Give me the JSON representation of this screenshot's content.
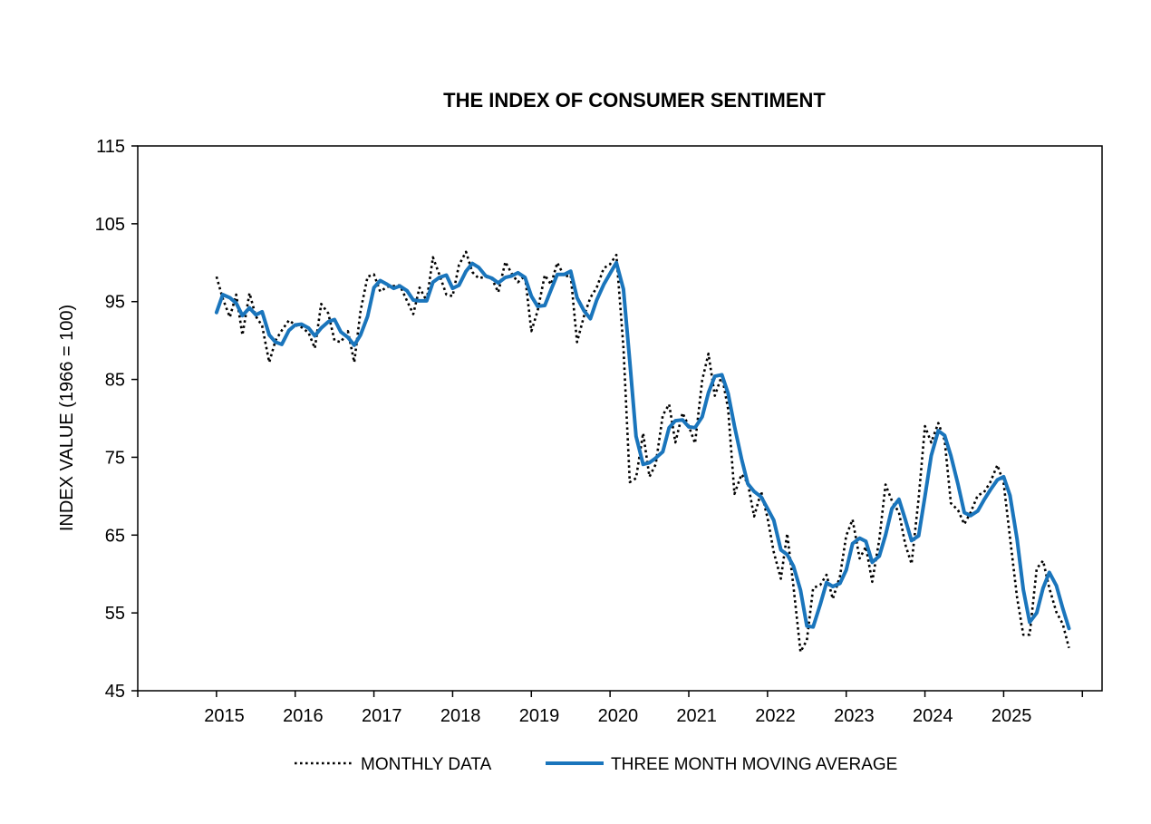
{
  "chart_data": {
    "type": "line",
    "title": "THE INDEX OF CONSUMER SENTIMENT",
    "xlabel": "",
    "ylabel": "INDEX VALUE (1966 = 100)",
    "ylim": [
      45,
      115
    ],
    "yticks": [
      "45",
      "55",
      "65",
      "75",
      "85",
      "95",
      "105",
      "115"
    ],
    "xlim": [
      2014.0,
      2026.25
    ],
    "xticks": [
      "2015",
      "2016",
      "2017",
      "2018",
      "2019",
      "2020",
      "2021",
      "2022",
      "2023",
      "2024",
      "2025"
    ],
    "legend_position": "bottom-center",
    "colors": {
      "monthly": "#000000",
      "average": "#1a75bc"
    },
    "series": [
      {
        "name": "MONTHLY DATA",
        "style": "dotted",
        "anchors": [
          [
            2015.0,
            98.2
          ],
          [
            2015.08,
            95.4
          ],
          [
            2015.17,
            93.0
          ],
          [
            2015.25,
            95.9
          ],
          [
            2015.33,
            90.7
          ],
          [
            2015.42,
            96.1
          ],
          [
            2015.5,
            93.1
          ],
          [
            2015.58,
            91.9
          ],
          [
            2015.67,
            87.2
          ],
          [
            2015.75,
            90.0
          ],
          [
            2015.83,
            91.3
          ],
          [
            2015.92,
            92.6
          ],
          [
            2016.0,
            92.0
          ],
          [
            2016.08,
            91.7
          ],
          [
            2016.17,
            91.0
          ],
          [
            2016.25,
            89.0
          ],
          [
            2016.33,
            94.7
          ],
          [
            2016.42,
            93.5
          ],
          [
            2016.5,
            90.0
          ],
          [
            2016.58,
            89.8
          ],
          [
            2016.67,
            91.2
          ],
          [
            2016.75,
            87.2
          ],
          [
            2016.83,
            93.8
          ],
          [
            2016.92,
            98.2
          ],
          [
            2017.0,
            98.5
          ],
          [
            2017.08,
            96.3
          ],
          [
            2017.17,
            96.9
          ],
          [
            2017.25,
            97.0
          ],
          [
            2017.33,
            97.1
          ],
          [
            2017.42,
            95.1
          ],
          [
            2017.5,
            93.4
          ],
          [
            2017.58,
            96.8
          ],
          [
            2017.67,
            95.1
          ],
          [
            2017.75,
            100.7
          ],
          [
            2017.83,
            98.5
          ],
          [
            2017.92,
            95.9
          ],
          [
            2018.0,
            95.7
          ],
          [
            2018.08,
            99.7
          ],
          [
            2018.17,
            101.4
          ],
          [
            2018.25,
            98.8
          ],
          [
            2018.33,
            98.0
          ],
          [
            2018.42,
            98.2
          ],
          [
            2018.5,
            97.9
          ],
          [
            2018.58,
            96.2
          ],
          [
            2018.67,
            100.1
          ],
          [
            2018.75,
            98.6
          ],
          [
            2018.83,
            97.5
          ],
          [
            2018.92,
            98.3
          ],
          [
            2019.0,
            91.2
          ],
          [
            2019.08,
            93.8
          ],
          [
            2019.17,
            98.4
          ],
          [
            2019.25,
            97.2
          ],
          [
            2019.33,
            100.0
          ],
          [
            2019.42,
            98.2
          ],
          [
            2019.5,
            98.4
          ],
          [
            2019.58,
            89.8
          ],
          [
            2019.67,
            93.2
          ],
          [
            2019.75,
            95.5
          ],
          [
            2019.83,
            96.8
          ],
          [
            2019.92,
            99.3
          ],
          [
            2020.0,
            99.8
          ],
          [
            2020.08,
            101.0
          ],
          [
            2020.17,
            89.1
          ],
          [
            2020.25,
            71.8
          ],
          [
            2020.33,
            72.3
          ],
          [
            2020.42,
            78.1
          ],
          [
            2020.5,
            72.5
          ],
          [
            2020.58,
            74.1
          ],
          [
            2020.67,
            80.4
          ],
          [
            2020.75,
            81.8
          ],
          [
            2020.83,
            76.9
          ],
          [
            2020.92,
            80.7
          ],
          [
            2021.0,
            79.0
          ],
          [
            2021.08,
            76.8
          ],
          [
            2021.17,
            84.9
          ],
          [
            2021.25,
            88.3
          ],
          [
            2021.33,
            82.9
          ],
          [
            2021.42,
            85.5
          ],
          [
            2021.5,
            81.2
          ],
          [
            2021.58,
            70.3
          ],
          [
            2021.67,
            72.8
          ],
          [
            2021.75,
            71.7
          ],
          [
            2021.83,
            67.4
          ],
          [
            2021.92,
            70.6
          ],
          [
            2022.0,
            67.2
          ],
          [
            2022.08,
            62.8
          ],
          [
            2022.17,
            59.4
          ],
          [
            2022.25,
            65.2
          ],
          [
            2022.33,
            58.4
          ],
          [
            2022.42,
            50.0
          ],
          [
            2022.5,
            51.5
          ],
          [
            2022.58,
            58.2
          ],
          [
            2022.67,
            58.6
          ],
          [
            2022.75,
            59.9
          ],
          [
            2022.83,
            56.8
          ],
          [
            2022.92,
            59.7
          ],
          [
            2023.0,
            64.9
          ],
          [
            2023.08,
            67.0
          ],
          [
            2023.17,
            62.0
          ],
          [
            2023.25,
            63.5
          ],
          [
            2023.33,
            59.0
          ],
          [
            2023.42,
            64.4
          ],
          [
            2023.5,
            71.5
          ],
          [
            2023.58,
            69.4
          ],
          [
            2023.67,
            67.9
          ],
          [
            2023.75,
            63.8
          ],
          [
            2023.83,
            61.3
          ],
          [
            2023.92,
            69.7
          ],
          [
            2024.0,
            79.0
          ],
          [
            2024.08,
            76.9
          ],
          [
            2024.17,
            79.4
          ],
          [
            2024.25,
            77.2
          ],
          [
            2024.33,
            69.1
          ],
          [
            2024.42,
            68.2
          ],
          [
            2024.5,
            66.4
          ],
          [
            2024.58,
            67.9
          ],
          [
            2024.67,
            70.1
          ],
          [
            2024.75,
            70.5
          ],
          [
            2024.83,
            71.8
          ],
          [
            2024.92,
            74.0
          ],
          [
            2025.0,
            71.7
          ],
          [
            2025.08,
            64.7
          ],
          [
            2025.17,
            57.0
          ],
          [
            2025.25,
            52.2
          ],
          [
            2025.33,
            52.2
          ],
          [
            2025.42,
            60.7
          ],
          [
            2025.5,
            61.7
          ],
          [
            2025.58,
            58.2
          ],
          [
            2025.67,
            55.1
          ],
          [
            2025.75,
            53.6
          ],
          [
            2025.83,
            50.5
          ]
        ]
      },
      {
        "name": "THREE MONTH MOVING AVERAGE",
        "style": "solid",
        "anchors": [
          [
            2015.0,
            93.6
          ],
          [
            2015.08,
            95.9
          ],
          [
            2015.17,
            95.5
          ],
          [
            2015.25,
            94.8
          ],
          [
            2015.33,
            93.2
          ],
          [
            2015.42,
            94.2
          ],
          [
            2015.5,
            93.3
          ],
          [
            2015.58,
            93.7
          ],
          [
            2015.67,
            90.7
          ],
          [
            2015.75,
            89.8
          ],
          [
            2015.83,
            89.5
          ],
          [
            2015.92,
            91.3
          ],
          [
            2016.0,
            92.0
          ],
          [
            2016.08,
            92.1
          ],
          [
            2016.17,
            91.6
          ],
          [
            2016.25,
            90.6
          ],
          [
            2016.33,
            91.6
          ],
          [
            2016.42,
            92.4
          ],
          [
            2016.5,
            92.7
          ],
          [
            2016.58,
            91.1
          ],
          [
            2016.67,
            90.4
          ],
          [
            2016.75,
            89.4
          ],
          [
            2016.83,
            90.7
          ],
          [
            2016.92,
            93.1
          ],
          [
            2017.0,
            96.8
          ],
          [
            2017.08,
            97.7
          ],
          [
            2017.17,
            97.2
          ],
          [
            2017.25,
            96.7
          ],
          [
            2017.33,
            97.0
          ],
          [
            2017.42,
            96.4
          ],
          [
            2017.5,
            95.2
          ],
          [
            2017.58,
            95.1
          ],
          [
            2017.67,
            95.1
          ],
          [
            2017.75,
            97.5
          ],
          [
            2017.83,
            98.1
          ],
          [
            2017.92,
            98.4
          ],
          [
            2018.0,
            96.7
          ],
          [
            2018.08,
            97.1
          ],
          [
            2018.17,
            98.9
          ],
          [
            2018.25,
            99.9
          ],
          [
            2018.33,
            99.4
          ],
          [
            2018.42,
            98.3
          ],
          [
            2018.5,
            98.0
          ],
          [
            2018.58,
            97.4
          ],
          [
            2018.67,
            98.1
          ],
          [
            2018.75,
            98.3
          ],
          [
            2018.83,
            98.7
          ],
          [
            2018.92,
            98.1
          ],
          [
            2019.0,
            95.7
          ],
          [
            2019.08,
            94.4
          ],
          [
            2019.17,
            94.5
          ],
          [
            2019.25,
            96.5
          ],
          [
            2019.33,
            98.5
          ],
          [
            2019.42,
            98.5
          ],
          [
            2019.5,
            98.9
          ],
          [
            2019.58,
            95.5
          ],
          [
            2019.67,
            93.8
          ],
          [
            2019.75,
            92.8
          ],
          [
            2019.83,
            95.2
          ],
          [
            2019.92,
            97.2
          ],
          [
            2020.0,
            98.6
          ],
          [
            2020.08,
            100.0
          ],
          [
            2020.17,
            96.6
          ],
          [
            2020.25,
            87.3
          ],
          [
            2020.33,
            77.7
          ],
          [
            2020.42,
            74.1
          ],
          [
            2020.5,
            74.3
          ],
          [
            2020.58,
            74.9
          ],
          [
            2020.67,
            75.7
          ],
          [
            2020.75,
            78.8
          ],
          [
            2020.83,
            79.7
          ],
          [
            2020.92,
            79.8
          ],
          [
            2021.0,
            78.9
          ],
          [
            2021.08,
            78.8
          ],
          [
            2021.17,
            80.2
          ],
          [
            2021.25,
            83.3
          ],
          [
            2021.33,
            85.4
          ],
          [
            2021.42,
            85.6
          ],
          [
            2021.5,
            83.2
          ],
          [
            2021.58,
            79.0
          ],
          [
            2021.67,
            74.8
          ],
          [
            2021.75,
            71.6
          ],
          [
            2021.83,
            70.6
          ],
          [
            2021.92,
            69.9
          ],
          [
            2022.0,
            68.4
          ],
          [
            2022.08,
            66.9
          ],
          [
            2022.17,
            63.1
          ],
          [
            2022.25,
            62.5
          ],
          [
            2022.33,
            61.0
          ],
          [
            2022.42,
            57.9
          ],
          [
            2022.5,
            53.3
          ],
          [
            2022.58,
            53.2
          ],
          [
            2022.67,
            56.1
          ],
          [
            2022.75,
            58.9
          ],
          [
            2022.83,
            58.4
          ],
          [
            2022.92,
            58.8
          ],
          [
            2023.0,
            60.5
          ],
          [
            2023.08,
            63.9
          ],
          [
            2023.17,
            64.6
          ],
          [
            2023.25,
            64.2
          ],
          [
            2023.33,
            61.5
          ],
          [
            2023.42,
            62.3
          ],
          [
            2023.5,
            65.0
          ],
          [
            2023.58,
            68.4
          ],
          [
            2023.67,
            69.6
          ],
          [
            2023.75,
            67.0
          ],
          [
            2023.83,
            64.3
          ],
          [
            2023.92,
            64.9
          ],
          [
            2024.0,
            70.0
          ],
          [
            2024.08,
            75.2
          ],
          [
            2024.17,
            78.4
          ],
          [
            2024.25,
            77.8
          ],
          [
            2024.33,
            75.2
          ],
          [
            2024.42,
            71.5
          ],
          [
            2024.5,
            67.9
          ],
          [
            2024.58,
            67.5
          ],
          [
            2024.67,
            68.1
          ],
          [
            2024.75,
            69.5
          ],
          [
            2024.83,
            70.8
          ],
          [
            2024.92,
            72.1
          ],
          [
            2025.0,
            72.5
          ],
          [
            2025.08,
            70.1
          ],
          [
            2025.17,
            64.5
          ],
          [
            2025.25,
            58.0
          ],
          [
            2025.33,
            53.8
          ],
          [
            2025.42,
            55.0
          ],
          [
            2025.5,
            58.2
          ],
          [
            2025.58,
            60.2
          ],
          [
            2025.67,
            58.5
          ],
          [
            2025.75,
            55.6
          ],
          [
            2025.83,
            53.0
          ]
        ]
      }
    ]
  }
}
